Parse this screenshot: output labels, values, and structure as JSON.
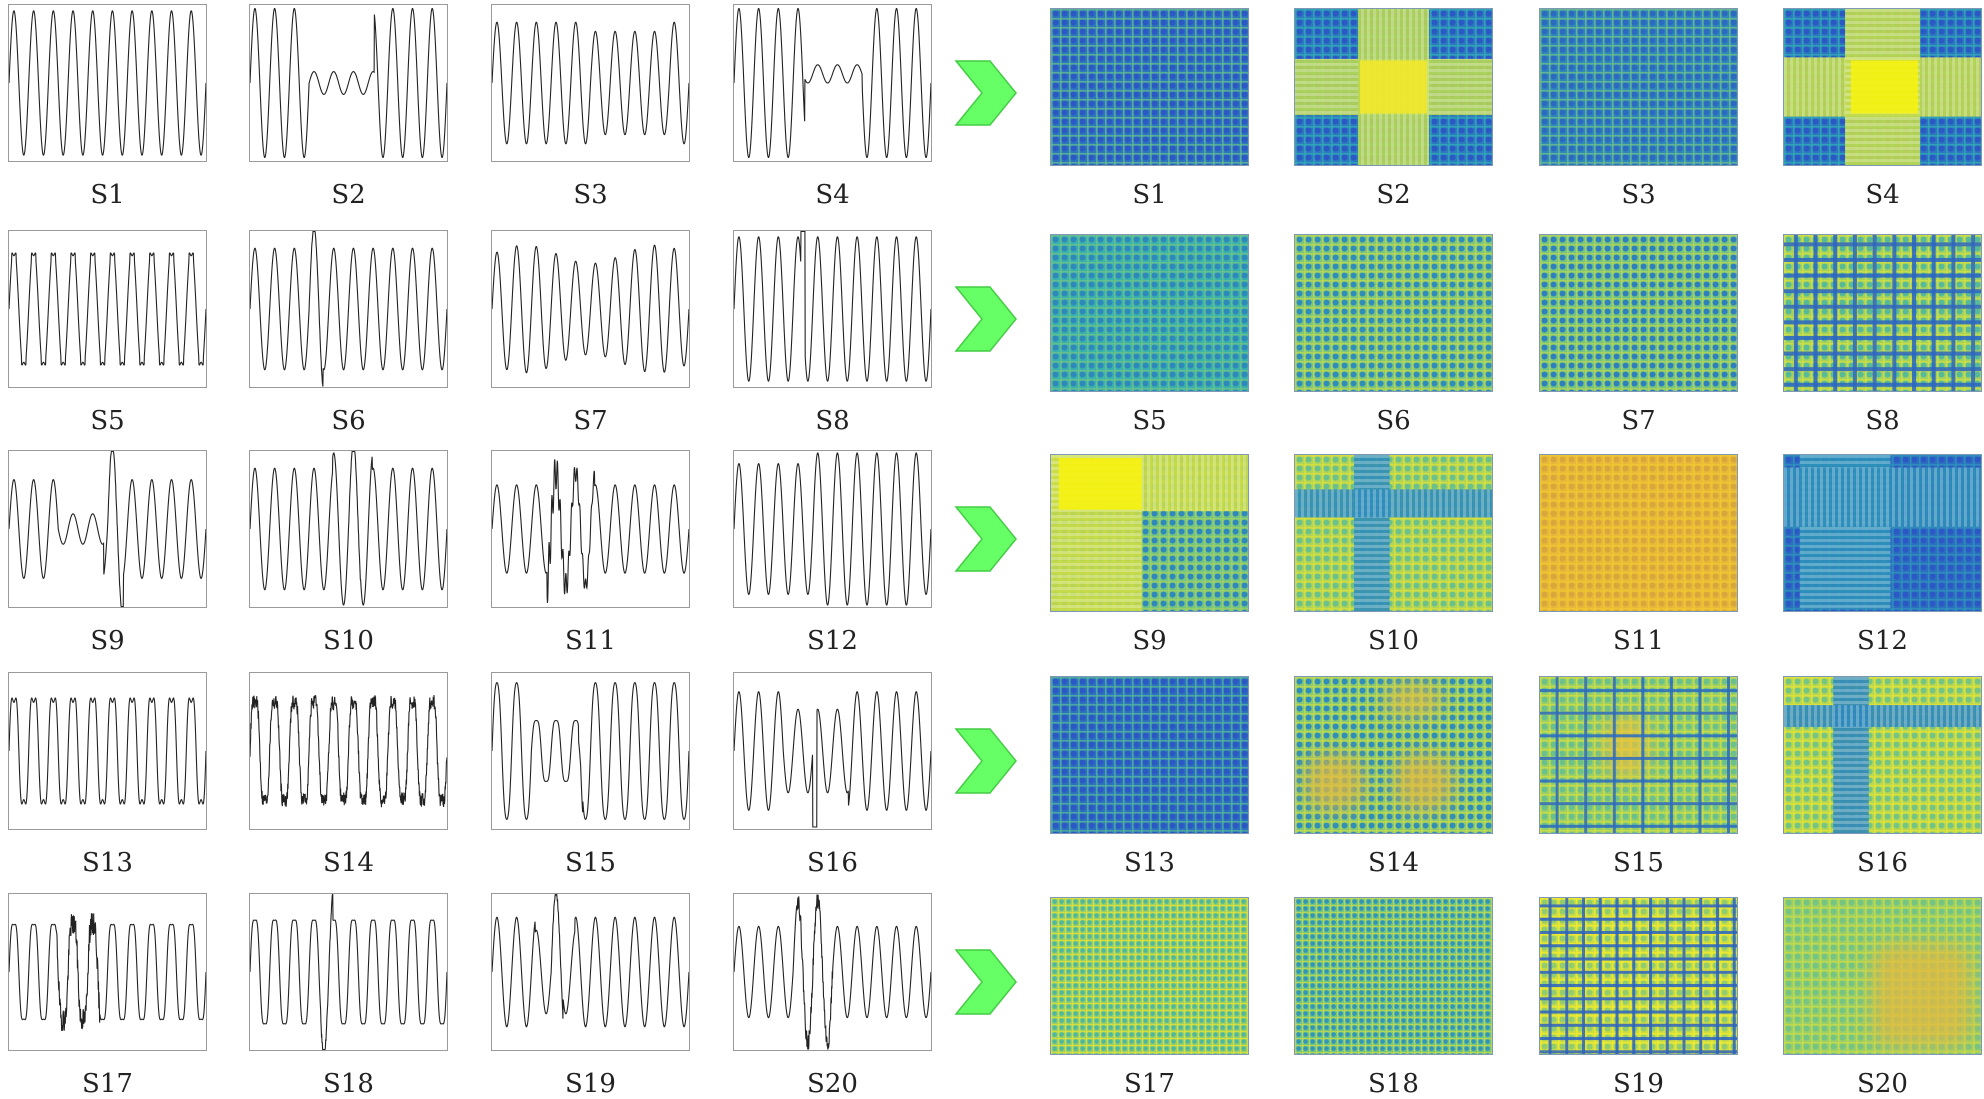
{
  "colors": {
    "signal_line": "#222222",
    "arrow_fill": "#66ff66",
    "arrow_stroke": "#44cc44",
    "map_dark": "#2b58c4",
    "map_mid": "#30b0b4",
    "map_light": "#f2e82a"
  },
  "signals": [
    {
      "label": "S1",
      "wave": "pure"
    },
    {
      "label": "S2",
      "wave": "interruption"
    },
    {
      "label": "S3",
      "wave": "sag"
    },
    {
      "label": "S4",
      "wave": "interruption-jump"
    },
    {
      "label": "S5",
      "wave": "notch"
    },
    {
      "label": "S6",
      "wave": "spike-burst"
    },
    {
      "label": "S7",
      "wave": "fluctuation"
    },
    {
      "label": "S8",
      "wave": "impulse"
    },
    {
      "label": "S9",
      "wave": "sag-spike"
    },
    {
      "label": "S10",
      "wave": "swell-spike"
    },
    {
      "label": "S11",
      "wave": "oscillatory-transient"
    },
    {
      "label": "S12",
      "wave": "swell"
    },
    {
      "label": "S13",
      "wave": "harmonic"
    },
    {
      "label": "S14",
      "wave": "harmonic-noise"
    },
    {
      "label": "S15",
      "wave": "sag-harmonic"
    },
    {
      "label": "S16",
      "wave": "sag-impulse"
    },
    {
      "label": "S17",
      "wave": "harmonic-transient"
    },
    {
      "label": "S18",
      "wave": "harmonic-spike"
    },
    {
      "label": "S19",
      "wave": "sag-transient"
    },
    {
      "label": "S20",
      "wave": "swell-transient"
    }
  ],
  "images": [
    {
      "label": "S1",
      "pattern": "uniform-blue"
    },
    {
      "label": "S2",
      "pattern": "center-yellow-block"
    },
    {
      "label": "S3",
      "pattern": "uniform-cyan"
    },
    {
      "label": "S4",
      "pattern": "center-yellow-strong"
    },
    {
      "label": "S5",
      "pattern": "uniform-teal"
    },
    {
      "label": "S6",
      "pattern": "uniform-green"
    },
    {
      "label": "S7",
      "pattern": "uniform-green-blue"
    },
    {
      "label": "S8",
      "pattern": "grid-blue-lines"
    },
    {
      "label": "S9",
      "pattern": "corner-yellow-block"
    },
    {
      "label": "S10",
      "pattern": "cross-blue"
    },
    {
      "label": "S11",
      "pattern": "uniform-orange"
    },
    {
      "label": "S12",
      "pattern": "blue-corner-block"
    },
    {
      "label": "S13",
      "pattern": "uniform-deep-blue"
    },
    {
      "label": "S14",
      "pattern": "yellow-blobs"
    },
    {
      "label": "S15",
      "pattern": "grid-sparse-lines"
    },
    {
      "label": "S16",
      "pattern": "cross-yellow"
    },
    {
      "label": "S17",
      "pattern": "fine-green"
    },
    {
      "label": "S18",
      "pattern": "fine-teal"
    },
    {
      "label": "S19",
      "pattern": "grid-dense-lines"
    },
    {
      "label": "S20",
      "pattern": "smooth-yellow"
    }
  ]
}
